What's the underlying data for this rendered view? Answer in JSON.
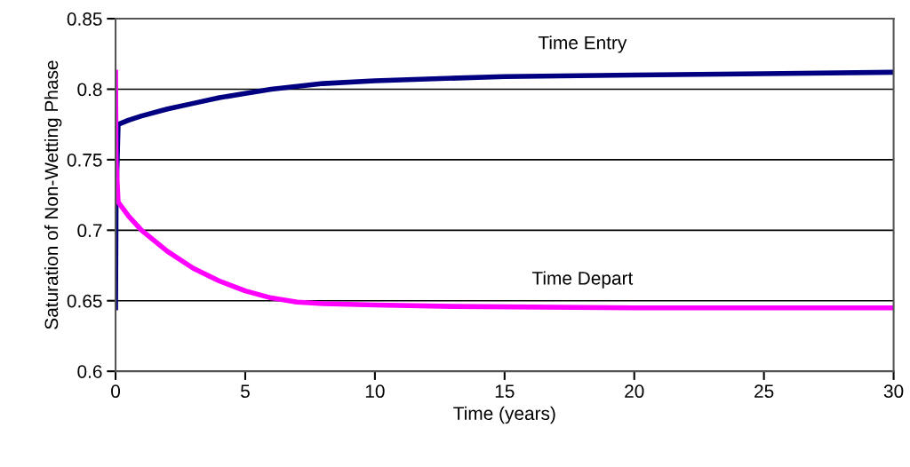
{
  "chart_data": {
    "type": "line",
    "xlabel": "Time (years)",
    "ylabel": "Saturation of Non-Wetting Phase",
    "xlim": [
      0,
      30
    ],
    "xticks": [
      0,
      5,
      10,
      15,
      20,
      25,
      30
    ],
    "ylim": [
      0.6,
      0.85
    ],
    "yticks": [
      0.6,
      0.65,
      0.7,
      0.75,
      0.8,
      0.85
    ],
    "grid": "y",
    "legend": false,
    "marker": "none",
    "line_style": "solid",
    "series": [
      {
        "name": "Time Entry",
        "color": "#000080",
        "x": [
          0,
          0.02,
          0.1,
          0.5,
          1,
          2,
          3,
          4,
          5,
          6,
          8,
          10,
          15,
          20,
          25,
          30
        ],
        "values": [
          0.645,
          0.72,
          0.775,
          0.778,
          0.781,
          0.786,
          0.79,
          0.794,
          0.797,
          0.8,
          0.804,
          0.806,
          0.809,
          0.81,
          0.811,
          0.812
        ]
      },
      {
        "name": "Time Depart",
        "color": "#ff00ff",
        "x": [
          0,
          0.02,
          0.1,
          0.5,
          1,
          2,
          3,
          4,
          5,
          6,
          7,
          8,
          10,
          13,
          20,
          30
        ],
        "values": [
          0.812,
          0.75,
          0.72,
          0.71,
          0.7,
          0.685,
          0.673,
          0.664,
          0.657,
          0.652,
          0.649,
          0.648,
          0.647,
          0.646,
          0.645,
          0.645
        ]
      }
    ]
  }
}
